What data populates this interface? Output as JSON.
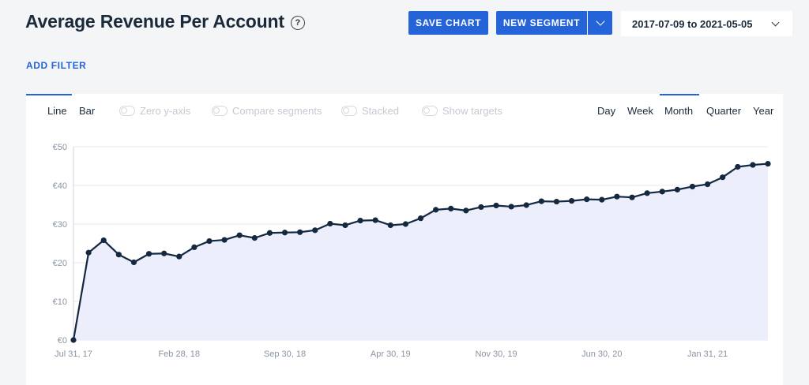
{
  "header": {
    "title": "Average Revenue Per Account",
    "help_icon": "question-circle-icon",
    "save_chart_label": "SAVE CHART",
    "new_segment_label": "NEW SEGMENT",
    "date_range": "2017-07-09 to 2021-05-05"
  },
  "filters": {
    "add_filter_label": "ADD FILTER"
  },
  "chart_tabs": {
    "type_tabs": [
      "Line",
      "Bar"
    ],
    "active_type": "Line",
    "toggles": [
      "Zero y-axis",
      "Compare segments",
      "Stacked",
      "Show targets"
    ],
    "period_tabs": [
      "Day",
      "Week",
      "Month",
      "Quarter",
      "Year"
    ],
    "active_period": "Month"
  },
  "colors": {
    "accent": "#2563d9",
    "line": "#14283f",
    "area_fill": "#eceefb",
    "grid": "#e6e8ec"
  },
  "chart_data": {
    "type": "area",
    "title": "",
    "xlabel": "",
    "ylabel": "",
    "y_ticks": [
      "€0",
      "€10",
      "€20",
      "€30",
      "€40",
      "€50"
    ],
    "ylim": [
      0,
      50
    ],
    "x_tick_labels": [
      "Jul 31, 17",
      "Feb 28, 18",
      "Sep 30, 18",
      "Apr 30, 19",
      "Nov 30, 19",
      "Jun 30, 20",
      "Jan 31, 21"
    ],
    "x_tick_index": [
      0,
      7,
      14,
      21,
      28,
      35,
      42
    ],
    "grid": true,
    "series": [
      {
        "values": [
          0,
          22.6,
          25.8,
          22.1,
          20.1,
          22.3,
          22.4,
          21.6,
          24.0,
          25.6,
          25.9,
          27.1,
          26.4,
          27.7,
          27.8,
          27.9,
          28.4,
          30.1,
          29.7,
          30.9,
          31.0,
          29.7,
          30.0,
          31.5,
          33.7,
          34.0,
          33.5,
          34.4,
          34.8,
          34.5,
          34.9,
          35.9,
          35.8,
          36.0,
          36.4,
          36.3,
          37.1,
          36.9,
          38.0,
          38.4,
          38.9,
          39.7,
          40.3,
          42.1,
          44.8,
          45.3,
          45.6
        ]
      }
    ]
  }
}
